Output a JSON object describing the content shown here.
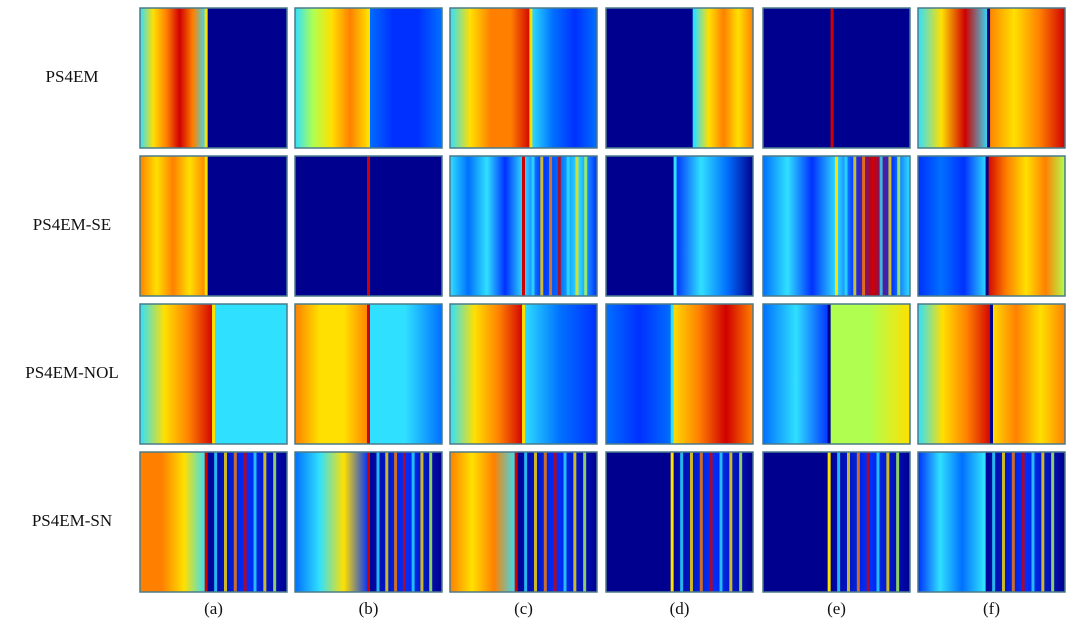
{
  "figure": {
    "row_labels": [
      "PS4EM",
      "PS4EM-SE",
      "PS4EM-NOL",
      "PS4EM-SN"
    ],
    "column_labels": [
      "(a)",
      "(b)",
      "(c)",
      "(d)",
      "(e)",
      "(f)"
    ]
  }
}
